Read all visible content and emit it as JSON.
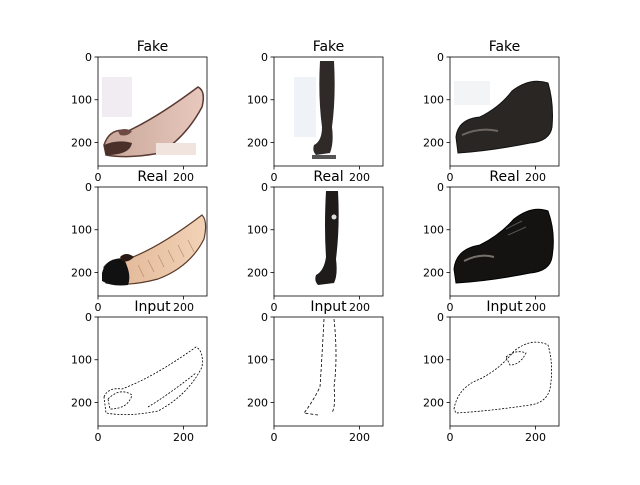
{
  "figure": {
    "panels": [
      {
        "title": "Fake",
        "kind": "flat-fake",
        "row": 0,
        "col": 0
      },
      {
        "title": "Fake",
        "kind": "boot-fake",
        "row": 0,
        "col": 1
      },
      {
        "title": "Fake",
        "kind": "oxford-fake",
        "row": 0,
        "col": 2
      },
      {
        "title": "Real",
        "kind": "flat-real",
        "row": 1,
        "col": 0
      },
      {
        "title": "Real",
        "kind": "boot-real",
        "row": 1,
        "col": 1
      },
      {
        "title": "Real",
        "kind": "oxford-real",
        "row": 1,
        "col": 2
      },
      {
        "title": "Input",
        "kind": "flat-edge",
        "row": 2,
        "col": 0
      },
      {
        "title": "Input",
        "kind": "boot-edge",
        "row": 2,
        "col": 1
      },
      {
        "title": "Input",
        "kind": "oxford-edge",
        "row": 2,
        "col": 2
      }
    ],
    "yticks": [
      "0",
      "100",
      "200"
    ],
    "xticks": [
      "0",
      "200"
    ]
  }
}
